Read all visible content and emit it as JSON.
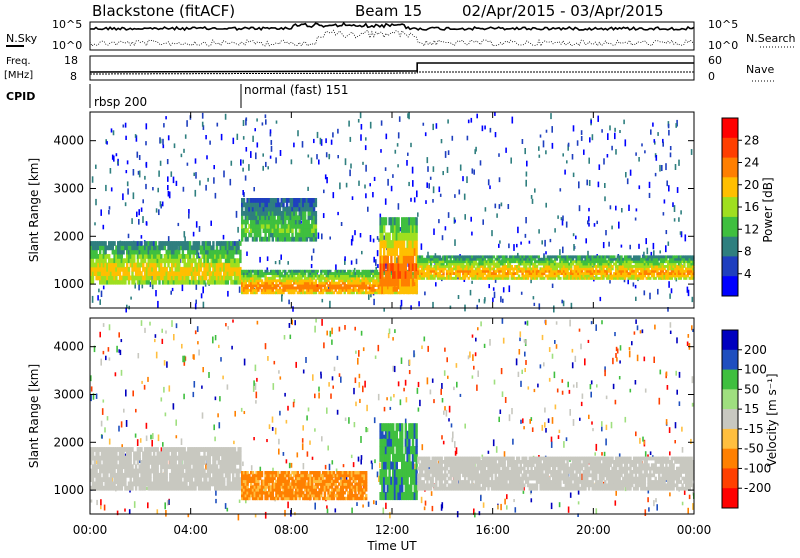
{
  "header": {
    "station": "Blackstone (fitACF)",
    "beam": "Beam 15",
    "date_range": "02/Apr/2015 - 03/Apr/2015"
  },
  "top_panels": {
    "nsky_label": "N.Sky",
    "nsearch_label": "N.Search",
    "nsky_ticks": [
      "10^5",
      "10^0"
    ],
    "nsearch_ticks": [
      "10^5",
      "10^0"
    ],
    "freq_label_line1": "Freq.",
    "freq_label_line2": "[MHz]",
    "freq_ticks": [
      "18",
      "8"
    ],
    "nave_label": "Nave",
    "nave_ticks": [
      "60",
      "0"
    ],
    "cpid_label": "CPID",
    "cpid_segments": [
      {
        "label": "rbsp 200",
        "start_hour": 0
      },
      {
        "label": "normal (fast) 151",
        "start_hour": 6
      }
    ]
  },
  "colors": {
    "power_scale": [
      "#0000ff",
      "#1f3fbf",
      "#2f7f7f",
      "#3fbf3f",
      "#9fdf1f",
      "#ffbf00",
      "#ff7f00",
      "#ff3f00",
      "#ff0000"
    ],
    "velocity_scale": [
      "#0000bf",
      "#1f4fbf",
      "#3fbf3f",
      "#9fdf7f",
      "#c8c8c0",
      "#ffbf3f",
      "#ff8000",
      "#ff4000",
      "#ff0000"
    ],
    "ground_scatter": "#c0c0b8"
  },
  "chart_data": [
    {
      "type": "heatmap",
      "title": "",
      "xlabel": "",
      "ylabel": "Slant Range [km]",
      "yticks": [
        "1000",
        "2000",
        "3000",
        "4000"
      ],
      "ylim": [
        500,
        4600
      ],
      "xlim": [
        0,
        24
      ],
      "colorbar_label": "Power [dB]",
      "colorbar_ticks": [
        "28",
        "24",
        "20",
        "16",
        "12",
        "8",
        "4"
      ],
      "bands": [
        {
          "hours": [
            0,
            6
          ],
          "range_km": [
            1000,
            1900
          ],
          "power_db": 20
        },
        {
          "hours": [
            6,
            13
          ],
          "range_km": [
            800,
            1300
          ],
          "power_db": 24
        },
        {
          "hours": [
            6,
            9
          ],
          "range_km": [
            1900,
            2800
          ],
          "power_db": 14
        },
        {
          "hours": [
            11.5,
            13
          ],
          "range_km": [
            800,
            2400
          ],
          "power_db": 26
        },
        {
          "hours": [
            13,
            24
          ],
          "range_km": [
            1100,
            1600
          ],
          "power_db": 22
        }
      ]
    },
    {
      "type": "heatmap",
      "title": "",
      "xlabel": "Time UT",
      "ylabel": "Slant Range [km]",
      "yticks": [
        "1000",
        "2000",
        "3000",
        "4000"
      ],
      "ylim": [
        500,
        4600
      ],
      "xlim": [
        0,
        24
      ],
      "xticks": [
        "00:00",
        "04:00",
        "08:00",
        "12:00",
        "16:00",
        "20:00",
        "00:00"
      ],
      "colorbar_label": "Velocity [m s⁻¹]",
      "colorbar_ticks": [
        "200",
        "100",
        "50",
        "15",
        "-15",
        "-50",
        "-100",
        "-200"
      ],
      "bands": [
        {
          "hours": [
            0,
            6
          ],
          "range_km": [
            1000,
            1900
          ],
          "velocity": 0
        },
        {
          "hours": [
            6,
            11
          ],
          "range_km": [
            800,
            1400
          ],
          "velocity": -60
        },
        {
          "hours": [
            11.5,
            13
          ],
          "range_km": [
            800,
            2400
          ],
          "velocity": 40
        },
        {
          "hours": [
            13,
            24
          ],
          "range_km": [
            1000,
            1700
          ],
          "velocity": 0
        }
      ]
    }
  ]
}
